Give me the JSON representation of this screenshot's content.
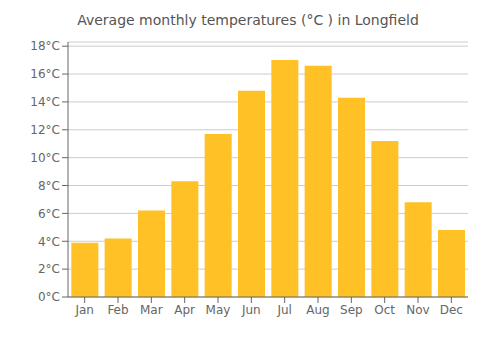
{
  "chart_data": {
    "type": "bar",
    "title": "Average monthly temperatures (°C ) in Longfield",
    "categories": [
      "Jan",
      "Feb",
      "Mar",
      "Apr",
      "May",
      "Jun",
      "Jul",
      "Aug",
      "Sep",
      "Oct",
      "Nov",
      "Dec"
    ],
    "values": [
      3.9,
      4.2,
      6.2,
      8.3,
      11.7,
      14.8,
      17.0,
      16.6,
      14.3,
      11.2,
      6.8,
      4.8
    ],
    "color": "#FFC125",
    "ylim": [
      0,
      18.3
    ],
    "yticks": [
      {
        "value": 0,
        "label": "0°C"
      },
      {
        "value": 2,
        "label": "2°C"
      },
      {
        "value": 4,
        "label": "4°C"
      },
      {
        "value": 6,
        "label": "6°C"
      },
      {
        "value": 8,
        "label": "8°C"
      },
      {
        "value": 10,
        "label": "10°C"
      },
      {
        "value": 12,
        "label": "12°C"
      },
      {
        "value": 14,
        "label": "14°C"
      },
      {
        "value": 16,
        "label": "16°C"
      },
      {
        "value": 18,
        "label": "18°C"
      }
    ],
    "grid": true
  }
}
